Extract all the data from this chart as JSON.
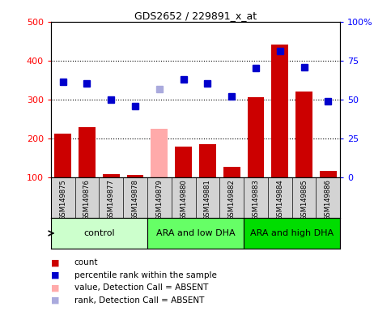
{
  "title": "GDS2652 / 229891_x_at",
  "samples": [
    "GSM149875",
    "GSM149876",
    "GSM149877",
    "GSM149878",
    "GSM149879",
    "GSM149880",
    "GSM149881",
    "GSM149882",
    "GSM149883",
    "GSM149884",
    "GSM149885",
    "GSM149886"
  ],
  "groups": [
    {
      "label": "control",
      "indices": [
        0,
        1,
        2,
        3
      ],
      "color": "#ccffcc"
    },
    {
      "label": "ARA and low DHA",
      "indices": [
        4,
        5,
        6,
        7
      ],
      "color": "#66ff66"
    },
    {
      "label": "ARA and high DHA",
      "indices": [
        8,
        9,
        10,
        11
      ],
      "color": "#00dd00"
    }
  ],
  "count_values": [
    213,
    228,
    108,
    105,
    null,
    178,
    186,
    126,
    305,
    442,
    320,
    116
  ],
  "count_absent": [
    null,
    null,
    null,
    null,
    224,
    null,
    null,
    null,
    null,
    null,
    null,
    null
  ],
  "rank_values": [
    345,
    342,
    299,
    284,
    null,
    351,
    341,
    309,
    382,
    424,
    384,
    295
  ],
  "rank_absent": [
    null,
    null,
    null,
    null,
    327,
    null,
    null,
    null,
    null,
    null,
    null,
    null
  ],
  "ylim": [
    100,
    500
  ],
  "yticks": [
    100,
    200,
    300,
    400,
    500
  ],
  "y2lim": [
    0,
    100
  ],
  "y2ticks": [
    0,
    25,
    50,
    75,
    100
  ],
  "y2ticklabels": [
    "0",
    "25",
    "50",
    "75",
    "100%"
  ],
  "bar_color": "#cc0000",
  "bar_absent_color": "#ffaaaa",
  "rank_color": "#0000cc",
  "rank_absent_color": "#aaaadd",
  "legend_items": [
    {
      "label": "count",
      "color": "#cc0000"
    },
    {
      "label": "percentile rank within the sample",
      "color": "#0000cc"
    },
    {
      "label": "value, Detection Call = ABSENT",
      "color": "#ffaaaa"
    },
    {
      "label": "rank, Detection Call = ABSENT",
      "color": "#aaaadd"
    }
  ]
}
